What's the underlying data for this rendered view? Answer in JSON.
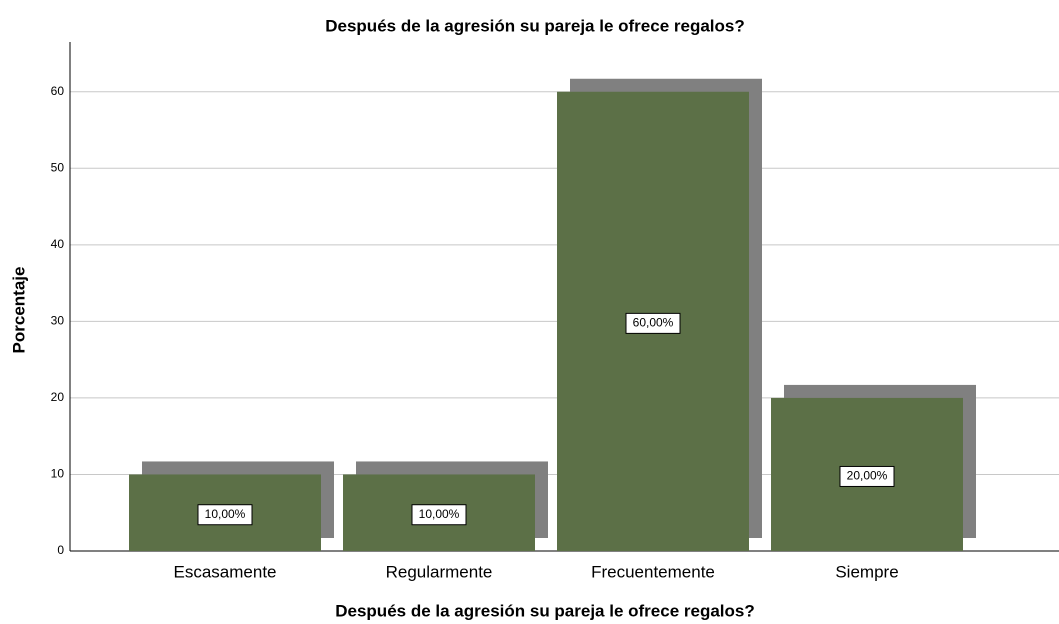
{
  "chart_data": {
    "type": "bar",
    "title": "Después de la agresión su pareja le ofrece regalos?",
    "xlabel": "Después de la agresión su pareja le ofrece regalos?",
    "ylabel": "Porcentaje",
    "categories": [
      "Escasamente",
      "Regularmente",
      "Frecuentemente",
      "Siempre"
    ],
    "values": [
      10,
      10,
      60,
      20
    ],
    "value_labels": [
      "10,00%",
      "10,00%",
      "60,00%",
      "20,00%"
    ],
    "color": "#5c7047",
    "shadow_color": "#808080",
    "ylim": [
      0,
      66.5
    ],
    "yticks": [
      0,
      10,
      20,
      30,
      40,
      50,
      60
    ],
    "grid": true
  }
}
